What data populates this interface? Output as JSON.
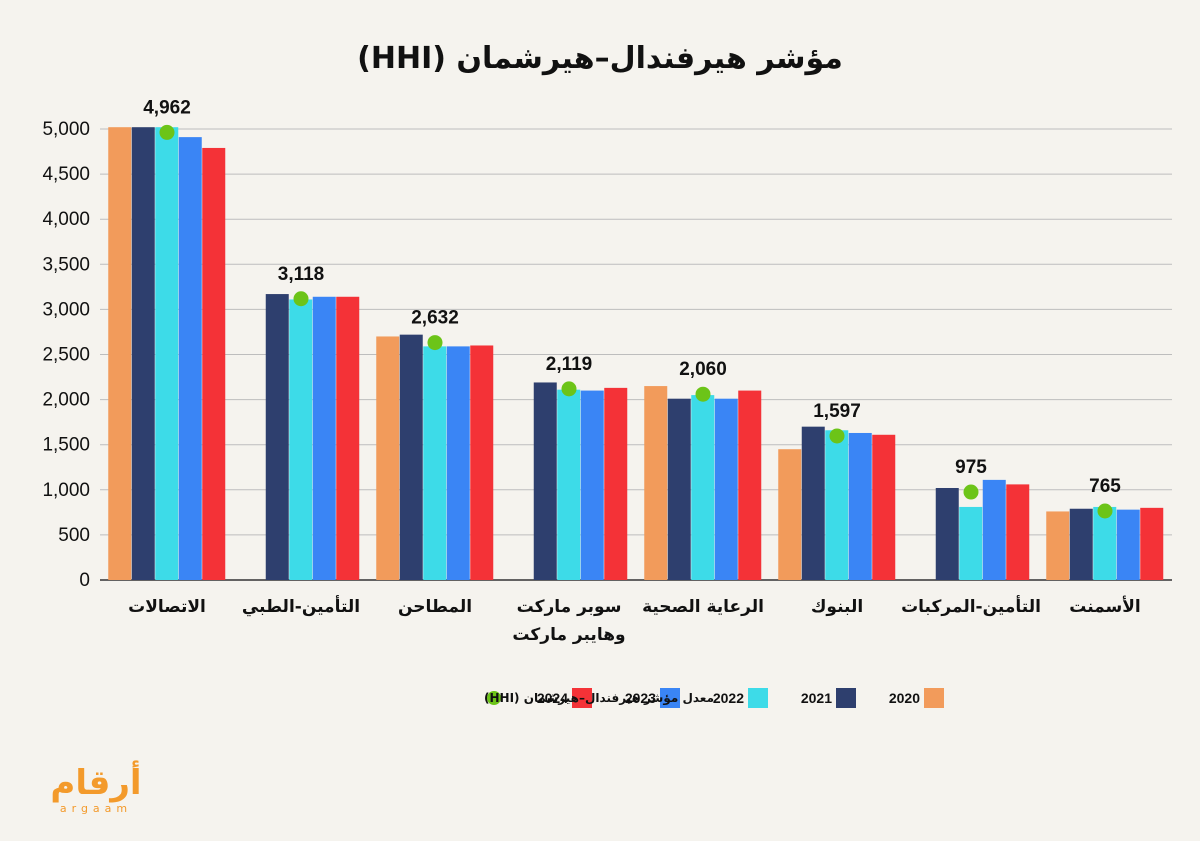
{
  "logo": {
    "arabic": "أرقام",
    "latin": "argaam",
    "color": "#f39a2b"
  },
  "chart_data": {
    "type": "bar",
    "title": "مؤشر هيرفندال–هيرشمان (HHI)",
    "xlabel": "",
    "ylabel": "",
    "ylim": [
      0,
      5000
    ],
    "y_ticks": [
      "0",
      "500",
      "1,000",
      "1,500",
      "2,000",
      "2,500",
      "3,000",
      "3,500",
      "4,000",
      "4,500",
      "5,000"
    ],
    "grid": true,
    "legend_position": "bottom",
    "direction": "rtl",
    "categories": [
      [
        "الاتصالات"
      ],
      [
        "التأمين-الطبي"
      ],
      [
        "المطاحن"
      ],
      [
        "سوبر ماركت",
        "وهايبر ماركت"
      ],
      [
        "الرعاية الصحية"
      ],
      [
        "البنوك"
      ],
      [
        "التأمين-المركبات"
      ],
      [
        "الأسمنت"
      ]
    ],
    "series": [
      {
        "name": "2020",
        "color": "#f29b5b",
        "values": [
          5020,
          null,
          2700,
          null,
          2150,
          1450,
          null,
          760
        ]
      },
      {
        "name": "2021",
        "color": "#2e3f6e",
        "values": [
          5020,
          3170,
          2720,
          2190,
          2010,
          1700,
          1020,
          790
        ]
      },
      {
        "name": "2022",
        "color": "#3ddbe8",
        "values": [
          5020,
          3110,
          2590,
          2110,
          2050,
          1660,
          810,
          810
        ]
      },
      {
        "name": "2023",
        "color": "#3a85f5",
        "values": [
          4910,
          3140,
          2590,
          2100,
          2010,
          1630,
          1110,
          780
        ]
      },
      {
        "name": "2024",
        "color": "#f43237",
        "values": [
          4790,
          3140,
          2600,
          2130,
          2100,
          1610,
          1060,
          800
        ]
      }
    ],
    "average": {
      "name": "معدل مؤشر هيرفندال–هيرشمان (HHI)",
      "color": "#6cc418",
      "values": [
        4962,
        3118,
        2632,
        2119,
        2060,
        1597,
        975,
        765
      ],
      "labels": [
        "4,962",
        "3,118",
        "2,632",
        "2,119",
        "2,060",
        "1,597",
        "975",
        "765"
      ]
    }
  }
}
